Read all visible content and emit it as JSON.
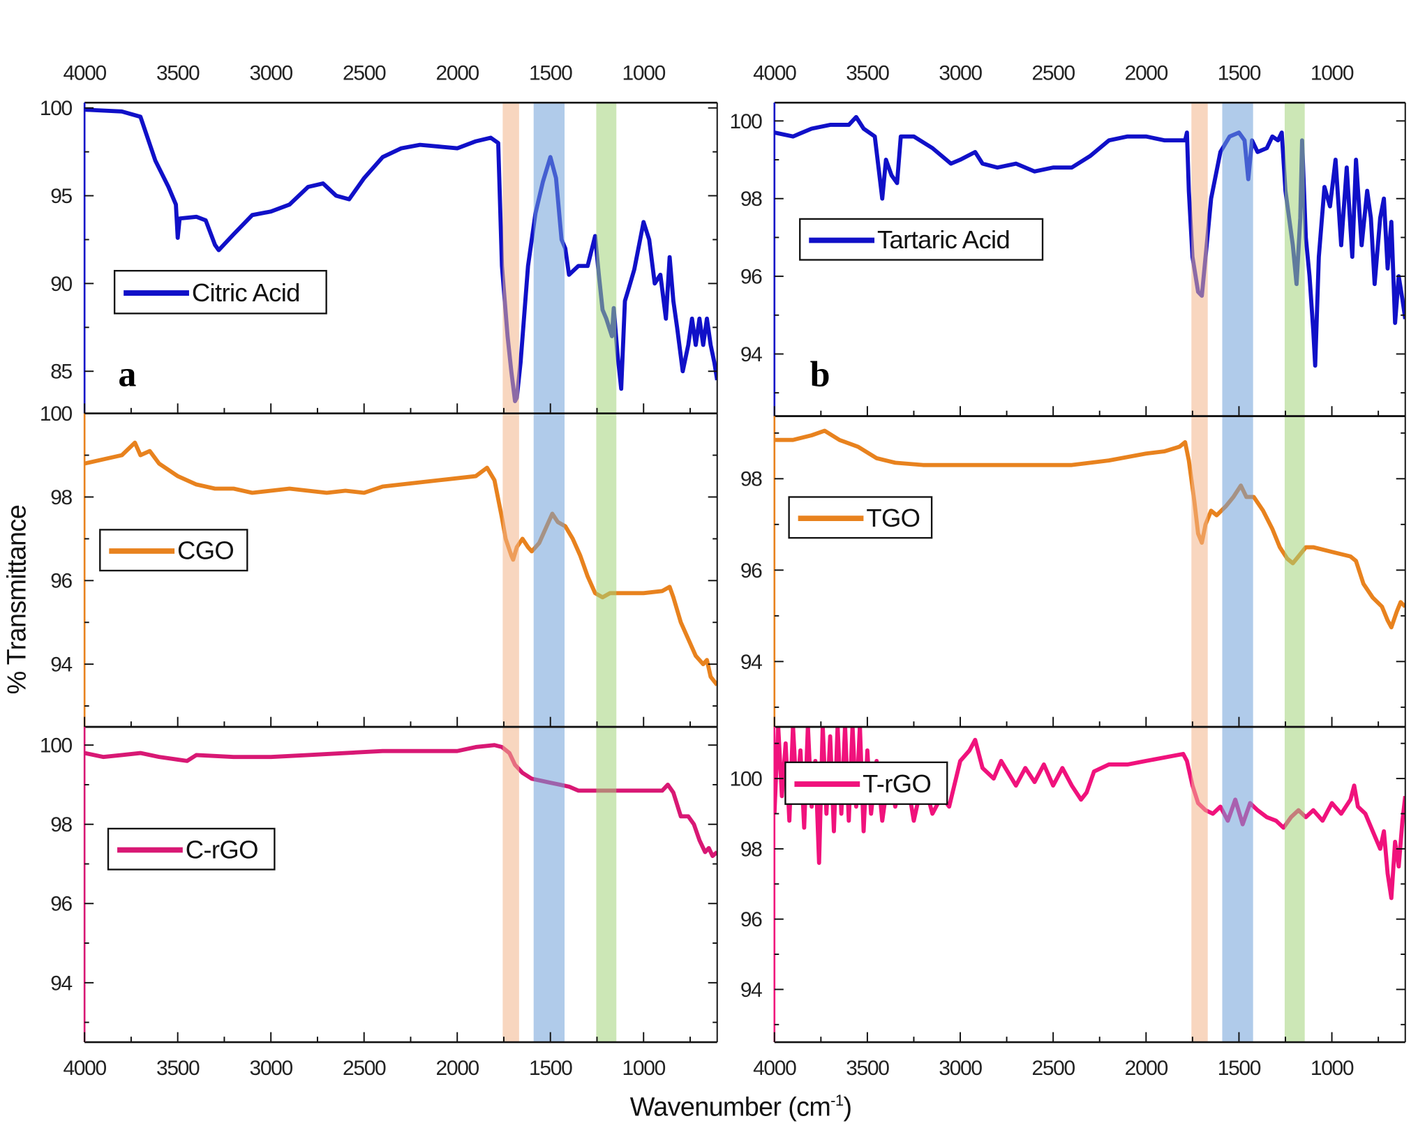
{
  "figure": {
    "xlabel": "Wavenumber (cm",
    "xlabel_sup": "-1",
    "xlabel_close": ")",
    "ylabel": "% Transmittance",
    "panel_letters": [
      "a",
      "b"
    ],
    "bands": [
      {
        "from": 1756,
        "to": 1668,
        "color": "#f2b48a"
      },
      {
        "from": 1590,
        "to": 1424,
        "color": "#6fa0d8"
      },
      {
        "from": 1254,
        "to": 1146,
        "color": "#a3d37a"
      }
    ]
  },
  "chart_data": [
    {
      "type": "line",
      "panel": "top-left",
      "series_name": "Citric Acid",
      "color": "#1010c8",
      "xlim": [
        4000,
        605
      ],
      "ylim": [
        82.6,
        100.3
      ],
      "xticks": [
        4000,
        3500,
        3000,
        2500,
        2000,
        1500,
        1000
      ],
      "yticks": [
        100,
        95,
        90,
        85
      ],
      "legend": "left-middle",
      "x": [
        4000,
        3800,
        3700,
        3620,
        3550,
        3510,
        3500,
        3490,
        3400,
        3350,
        3300,
        3280,
        3200,
        3100,
        3000,
        2900,
        2800,
        2720,
        2650,
        2580,
        2500,
        2400,
        2300,
        2200,
        2100,
        2000,
        1900,
        1820,
        1780,
        1760,
        1730,
        1710,
        1690,
        1680,
        1660,
        1620,
        1580,
        1540,
        1500,
        1470,
        1440,
        1420,
        1400,
        1350,
        1300,
        1260,
        1240,
        1220,
        1200,
        1170,
        1160,
        1140,
        1120,
        1100,
        1080,
        1050,
        1000,
        970,
        940,
        910,
        880,
        860,
        840,
        820,
        790,
        760,
        740,
        720,
        700,
        680,
        660,
        640,
        620,
        605
      ],
      "y": [
        99.9,
        99.8,
        99.5,
        97,
        95.5,
        94.5,
        92.6,
        93.7,
        93.8,
        93.6,
        92.2,
        91.9,
        92.8,
        93.9,
        94.1,
        94.5,
        95.5,
        95.7,
        95.0,
        94.8,
        96.0,
        97.2,
        97.7,
        97.9,
        97.8,
        97.7,
        98.1,
        98.3,
        98.0,
        91,
        87,
        85,
        83.3,
        83.5,
        85.5,
        91,
        94,
        95.8,
        97.2,
        96,
        92.5,
        92,
        90.5,
        91,
        91,
        92.7,
        90.5,
        88.5,
        88,
        87,
        88.6,
        86,
        84,
        89,
        89.7,
        90.8,
        93.5,
        92.5,
        90,
        90.5,
        88,
        91.5,
        89,
        87.5,
        85,
        86.5,
        88,
        86.5,
        88,
        86.5,
        88,
        86.5,
        85.5,
        84.5
      ]
    },
    {
      "type": "line",
      "panel": "middle-left",
      "series_name": "CGO",
      "color": "#e8821e",
      "xlim": [
        4000,
        605
      ],
      "ylim": [
        92.5,
        100
      ],
      "xticks": [
        4000,
        3500,
        3000,
        2500,
        2000,
        1500,
        1000
      ],
      "yticks": [
        100,
        98,
        96,
        94
      ],
      "legend": "left-middle",
      "x": [
        4000,
        3900,
        3800,
        3730,
        3700,
        3650,
        3600,
        3500,
        3400,
        3300,
        3200,
        3100,
        3000,
        2900,
        2800,
        2700,
        2600,
        2500,
        2400,
        2300,
        2200,
        2100,
        2000,
        1900,
        1840,
        1800,
        1760,
        1740,
        1710,
        1700,
        1680,
        1650,
        1620,
        1600,
        1560,
        1520,
        1490,
        1460,
        1420,
        1380,
        1340,
        1300,
        1260,
        1220,
        1180,
        1100,
        1000,
        900,
        860,
        840,
        800,
        760,
        720,
        680,
        660,
        640,
        605
      ],
      "y": [
        98.8,
        98.9,
        99.0,
        99.3,
        99.0,
        99.1,
        98.8,
        98.5,
        98.3,
        98.2,
        98.2,
        98.1,
        98.15,
        98.2,
        98.15,
        98.1,
        98.15,
        98.1,
        98.25,
        98.3,
        98.35,
        98.4,
        98.45,
        98.5,
        98.7,
        98.4,
        97.5,
        97.0,
        96.6,
        96.5,
        96.8,
        97.0,
        96.8,
        96.7,
        96.9,
        97.3,
        97.6,
        97.4,
        97.3,
        97.0,
        96.6,
        96.1,
        95.7,
        95.6,
        95.7,
        95.7,
        95.7,
        95.75,
        95.85,
        95.6,
        95.0,
        94.6,
        94.2,
        94.0,
        94.1,
        93.7,
        93.5
      ]
    },
    {
      "type": "line",
      "panel": "bottom-left",
      "series_name": "C-rGO",
      "color": "#d81874",
      "xlim": [
        4000,
        605
      ],
      "ylim": [
        92.5,
        100.46
      ],
      "xticks": [
        4000,
        3500,
        3000,
        2500,
        2000,
        1500,
        1000
      ],
      "yticks": [
        100,
        98,
        96,
        94
      ],
      "legend": "left-middle",
      "x": [
        4000,
        3900,
        3800,
        3700,
        3600,
        3450,
        3400,
        3200,
        3000,
        2800,
        2600,
        2400,
        2200,
        2000,
        1900,
        1800,
        1760,
        1720,
        1690,
        1650,
        1600,
        1550,
        1500,
        1450,
        1400,
        1350,
        1300,
        1200,
        1100,
        1000,
        900,
        870,
        840,
        800,
        760,
        730,
        700,
        670,
        650,
        630,
        605
      ],
      "y": [
        99.8,
        99.7,
        99.75,
        99.8,
        99.7,
        99.6,
        99.75,
        99.7,
        99.7,
        99.75,
        99.8,
        99.85,
        99.85,
        99.85,
        99.95,
        100.0,
        99.95,
        99.8,
        99.5,
        99.3,
        99.15,
        99.1,
        99.05,
        99.0,
        98.95,
        98.85,
        98.85,
        98.85,
        98.85,
        98.85,
        98.85,
        99.0,
        98.8,
        98.2,
        98.2,
        98.0,
        97.6,
        97.3,
        97.4,
        97.2,
        97.3
      ]
    },
    {
      "type": "line",
      "panel": "top-right",
      "series_name": "Tartaric Acid",
      "color": "#1010c8",
      "xlim": [
        4000,
        605
      ],
      "ylim": [
        92.4,
        100.47
      ],
      "xticks": [
        4000,
        3500,
        3000,
        2500,
        2000,
        1500,
        1000
      ],
      "yticks": [
        100,
        98,
        96,
        94
      ],
      "legend": "left-middle",
      "x": [
        4000,
        3900,
        3800,
        3700,
        3600,
        3560,
        3520,
        3460,
        3440,
        3420,
        3400,
        3370,
        3340,
        3320,
        3250,
        3150,
        3050,
        3000,
        2920,
        2880,
        2800,
        2700,
        2600,
        2500,
        2400,
        2300,
        2200,
        2100,
        2000,
        1900,
        1790,
        1780,
        1770,
        1750,
        1720,
        1700,
        1680,
        1650,
        1600,
        1550,
        1500,
        1470,
        1450,
        1430,
        1400,
        1350,
        1320,
        1290,
        1270,
        1250,
        1230,
        1210,
        1190,
        1170,
        1160,
        1140,
        1120,
        1100,
        1090,
        1070,
        1040,
        1010,
        980,
        950,
        920,
        890,
        870,
        840,
        810,
        790,
        770,
        740,
        720,
        700,
        680,
        660,
        640,
        620,
        605
      ],
      "y": [
        99.7,
        99.6,
        99.8,
        99.9,
        99.9,
        100.1,
        99.8,
        99.6,
        98.8,
        98.0,
        99.0,
        98.6,
        98.4,
        99.6,
        99.6,
        99.3,
        98.9,
        99.0,
        99.2,
        98.9,
        98.8,
        98.9,
        98.7,
        98.8,
        98.8,
        99.1,
        99.5,
        99.6,
        99.6,
        99.5,
        99.5,
        99.7,
        98.2,
        96.5,
        95.6,
        95.5,
        96.5,
        98,
        99.2,
        99.6,
        99.7,
        99.5,
        98.5,
        99.5,
        99.2,
        99.3,
        99.6,
        99.5,
        99.7,
        98.2,
        97.5,
        96.8,
        95.8,
        97.5,
        99.5,
        97,
        96,
        94.6,
        93.7,
        96.5,
        98.3,
        97.8,
        99.0,
        96.8,
        98.8,
        96.5,
        99.0,
        96.8,
        98.2,
        97.5,
        95.8,
        97.5,
        98.0,
        96.2,
        97.4,
        94.8,
        96,
        95.4,
        94.9
      ]
    },
    {
      "type": "line",
      "panel": "middle-right",
      "series_name": "TGO",
      "color": "#e8821e",
      "xlim": [
        4000,
        605
      ],
      "ylim": [
        92.57,
        99.37
      ],
      "xticks": [
        4000,
        3500,
        3000,
        2500,
        2000,
        1500,
        1000
      ],
      "yticks": [
        98,
        96,
        94
      ],
      "legend": "left-middle",
      "x": [
        4000,
        3900,
        3800,
        3730,
        3650,
        3550,
        3450,
        3350,
        3200,
        3000,
        2800,
        2600,
        2400,
        2200,
        2000,
        1900,
        1820,
        1790,
        1770,
        1740,
        1720,
        1700,
        1680,
        1650,
        1620,
        1570,
        1530,
        1490,
        1460,
        1420,
        1370,
        1320,
        1280,
        1240,
        1210,
        1180,
        1140,
        1100,
        1000,
        950,
        900,
        870,
        830,
        780,
        730,
        700,
        680,
        650,
        630,
        605
      ],
      "y": [
        98.85,
        98.85,
        98.95,
        99.05,
        98.85,
        98.7,
        98.45,
        98.35,
        98.3,
        98.3,
        98.3,
        98.3,
        98.3,
        98.4,
        98.55,
        98.6,
        98.7,
        98.8,
        98.4,
        97.5,
        96.8,
        96.6,
        97.0,
        97.3,
        97.2,
        97.4,
        97.6,
        97.85,
        97.6,
        97.6,
        97.3,
        96.9,
        96.5,
        96.25,
        96.15,
        96.3,
        96.5,
        96.5,
        96.4,
        96.35,
        96.3,
        96.2,
        95.7,
        95.4,
        95.2,
        94.9,
        94.75,
        95.1,
        95.3,
        95.2
      ]
    },
    {
      "type": "line",
      "panel": "bottom-right",
      "series_name": "T-rGO",
      "color": "#f0127c",
      "xlim": [
        4000,
        605
      ],
      "ylim": [
        92.5,
        101.47
      ],
      "xticks": [
        4000,
        3500,
        3000,
        2500,
        2000,
        1500,
        1000
      ],
      "yticks": [
        100,
        98,
        96,
        94
      ],
      "legend": "left-top",
      "x": [
        4000,
        3980,
        3960,
        3940,
        3920,
        3900,
        3880,
        3860,
        3840,
        3820,
        3800,
        3780,
        3760,
        3740,
        3720,
        3700,
        3680,
        3660,
        3640,
        3620,
        3600,
        3580,
        3560,
        3540,
        3520,
        3500,
        3480,
        3450,
        3420,
        3380,
        3350,
        3300,
        3250,
        3200,
        3150,
        3100,
        3060,
        3000,
        2950,
        2920,
        2880,
        2820,
        2780,
        2700,
        2650,
        2600,
        2550,
        2500,
        2450,
        2400,
        2350,
        2320,
        2280,
        2200,
        2100,
        2000,
        1900,
        1800,
        1780,
        1750,
        1720,
        1680,
        1640,
        1600,
        1560,
        1520,
        1480,
        1440,
        1400,
        1350,
        1300,
        1260,
        1220,
        1180,
        1140,
        1100,
        1050,
        1000,
        950,
        900,
        880,
        860,
        820,
        780,
        740,
        720,
        700,
        680,
        660,
        640,
        620,
        605
      ],
      "y": [
        99.0,
        101.5,
        99.5,
        101.0,
        98.8,
        101.5,
        99.5,
        100.8,
        98.6,
        101.5,
        99.2,
        100.5,
        97.6,
        101.5,
        99.0,
        101.2,
        98.5,
        101.5,
        99.0,
        101.5,
        98.8,
        101.5,
        99.2,
        101.5,
        98.5,
        100.8,
        99.0,
        100.5,
        98.8,
        100.3,
        99.2,
        100.4,
        98.8,
        100.0,
        99.0,
        99.5,
        99.2,
        100.5,
        100.8,
        101.1,
        100.3,
        100.0,
        100.5,
        99.8,
        100.3,
        99.9,
        100.4,
        99.8,
        100.3,
        99.8,
        99.4,
        99.6,
        100.2,
        100.4,
        100.4,
        100.5,
        100.6,
        100.7,
        100.5,
        99.8,
        99.3,
        99.1,
        99.0,
        99.2,
        98.8,
        99.4,
        98.7,
        99.3,
        99.1,
        98.9,
        98.8,
        98.6,
        98.9,
        99.1,
        98.9,
        99.1,
        98.8,
        99.3,
        99.0,
        99.4,
        99.8,
        99.2,
        99.0,
        98.5,
        98.0,
        98.5,
        97.3,
        96.6,
        98.2,
        97.5,
        98.8,
        99.5
      ]
    }
  ]
}
